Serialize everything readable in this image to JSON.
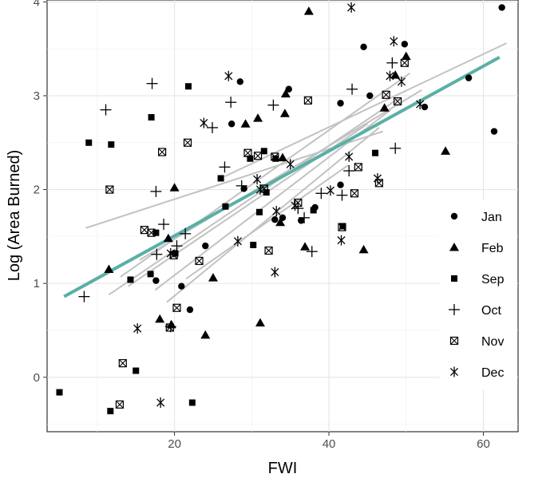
{
  "chart_data": {
    "type": "scatter",
    "title": "",
    "xlabel": "FWI",
    "ylabel": "Log (Area Burned)",
    "xlim": [
      3.5,
      64.5
    ],
    "ylim": [
      -0.58,
      4.02
    ],
    "x_ticks": [
      20,
      40,
      60
    ],
    "y_ticks": [
      0,
      1,
      2,
      3,
      4
    ],
    "grid": true,
    "legend_position": "right",
    "colors": {
      "fit": "#5aafa5",
      "month_fits": "#c2c2c2",
      "points": "#000000"
    },
    "series": [
      {
        "name": "Jan",
        "shape": "circle",
        "points": [
          [
            28.5,
            3.15
          ],
          [
            29,
            2.01
          ],
          [
            27.4,
            2.7
          ],
          [
            34.8,
            3.07
          ],
          [
            34,
            1.7
          ],
          [
            36.4,
            1.67
          ],
          [
            38.2,
            1.81
          ],
          [
            41.5,
            2.92
          ],
          [
            44.5,
            3.52
          ],
          [
            45.3,
            3.0
          ],
          [
            49.8,
            3.55
          ],
          [
            52.4,
            2.88
          ],
          [
            58.1,
            3.19
          ],
          [
            61.4,
            2.62
          ],
          [
            62.4,
            3.94
          ],
          [
            41.5,
            2.05
          ],
          [
            24,
            1.4
          ],
          [
            22,
            0.72
          ],
          [
            20.9,
            0.97
          ],
          [
            17.6,
            1.03
          ],
          [
            33,
            1.68
          ]
        ]
      },
      {
        "name": "Feb",
        "shape": "triangle",
        "points": [
          [
            37.4,
            3.9
          ],
          [
            34.4,
            3.02
          ],
          [
            34.3,
            2.81
          ],
          [
            34,
            2.34
          ],
          [
            29.2,
            2.7
          ],
          [
            30.8,
            2.76
          ],
          [
            20,
            2.02
          ],
          [
            19.2,
            1.48
          ],
          [
            11.5,
            1.15
          ],
          [
            18.1,
            0.62
          ],
          [
            19.6,
            0.56
          ],
          [
            24,
            0.45
          ],
          [
            25,
            1.06
          ],
          [
            31.1,
            0.58
          ],
          [
            33.7,
            1.65
          ],
          [
            36.9,
            1.39
          ],
          [
            44.5,
            1.36
          ],
          [
            47.2,
            2.87
          ],
          [
            48.6,
            3.22
          ],
          [
            50,
            3.42
          ],
          [
            55.1,
            2.41
          ]
        ]
      },
      {
        "name": "Sep",
        "shape": "square",
        "points": [
          [
            21.8,
            3.1
          ],
          [
            17,
            2.77
          ],
          [
            8.9,
            2.5
          ],
          [
            11.8,
            2.48
          ],
          [
            14.3,
            1.04
          ],
          [
            16.9,
            1.1
          ],
          [
            17.6,
            1.54
          ],
          [
            15,
            0.07
          ],
          [
            11.7,
            -0.36
          ],
          [
            22.3,
            -0.27
          ],
          [
            5.1,
            -0.16
          ],
          [
            26,
            2.12
          ],
          [
            26.6,
            1.82
          ],
          [
            29.8,
            2.33
          ],
          [
            30.2,
            1.41
          ],
          [
            31,
            1.76
          ],
          [
            31.6,
            2.41
          ],
          [
            31.9,
            1.97
          ],
          [
            33.1,
            2.33
          ],
          [
            38,
            1.78
          ],
          [
            41.8,
            1.61
          ],
          [
            46,
            2.39
          ],
          [
            20.1,
            1.32
          ]
        ]
      },
      {
        "name": "Oct",
        "shape": "plus",
        "points": [
          [
            17.1,
            3.13
          ],
          [
            11.1,
            2.85
          ],
          [
            17.6,
            1.98
          ],
          [
            8.3,
            0.86
          ],
          [
            18.6,
            1.63
          ],
          [
            17.7,
            1.31
          ],
          [
            21.4,
            1.53
          ],
          [
            20.3,
            1.4
          ],
          [
            19.5,
            0.54
          ],
          [
            24.9,
            2.66
          ],
          [
            27.3,
            2.93
          ],
          [
            26.5,
            2.24
          ],
          [
            28.7,
            2.04
          ],
          [
            32.8,
            2.9
          ],
          [
            36,
            1.8
          ],
          [
            36.8,
            1.7
          ],
          [
            37.8,
            1.34
          ],
          [
            39,
            1.96
          ],
          [
            41.7,
            1.94
          ],
          [
            42.6,
            2.2
          ],
          [
            43,
            3.07
          ],
          [
            48.2,
            3.35
          ],
          [
            48.6,
            2.44
          ]
        ]
      },
      {
        "name": "Nov",
        "shape": "boxx",
        "points": [
          [
            11.6,
            2.0
          ],
          [
            18.4,
            2.4
          ],
          [
            21.7,
            2.5
          ],
          [
            16.1,
            1.57
          ],
          [
            17,
            1.54
          ],
          [
            19.9,
            1.3
          ],
          [
            23.2,
            1.24
          ],
          [
            20.3,
            0.74
          ],
          [
            19.4,
            0.53
          ],
          [
            13.3,
            0.15
          ],
          [
            12.9,
            -0.29
          ],
          [
            29.5,
            2.39
          ],
          [
            30.8,
            2.36
          ],
          [
            33,
            2.35
          ],
          [
            31.6,
            2.01
          ],
          [
            32.2,
            1.35
          ],
          [
            36,
            1.86
          ],
          [
            37.3,
            2.95
          ],
          [
            41.7,
            1.6
          ],
          [
            43.3,
            1.96
          ],
          [
            43.8,
            2.24
          ],
          [
            46.5,
            2.07
          ],
          [
            47.4,
            3.01
          ],
          [
            48.9,
            2.94
          ],
          [
            49.8,
            3.35
          ]
        ]
      },
      {
        "name": "Dec",
        "shape": "asterisk",
        "points": [
          [
            27,
            3.21
          ],
          [
            23.8,
            2.71
          ],
          [
            28.2,
            1.45
          ],
          [
            30.7,
            2.11
          ],
          [
            31.1,
            2.0
          ],
          [
            33.2,
            1.77
          ],
          [
            33,
            1.12
          ],
          [
            35,
            2.27
          ],
          [
            35.6,
            1.83
          ],
          [
            40.2,
            1.99
          ],
          [
            41.6,
            1.46
          ],
          [
            42.6,
            2.35
          ],
          [
            42.9,
            3.94
          ],
          [
            46.3,
            2.12
          ],
          [
            47.9,
            3.21
          ],
          [
            48.4,
            3.58
          ],
          [
            49.4,
            3.15
          ],
          [
            51.8,
            2.91
          ],
          [
            18.2,
            -0.27
          ],
          [
            15.2,
            0.52
          ],
          [
            19.5,
            1.32
          ]
        ]
      }
    ],
    "overall_fit": {
      "x1": 5.7,
      "y1": 0.86,
      "x2": 62.1,
      "y2": 3.41
    },
    "month_fits": [
      {
        "x1": 8.5,
        "y1": 1.59,
        "x2": 47.0,
        "y2": 2.62
      },
      {
        "x1": 11.5,
        "y1": 0.88,
        "x2": 49.0,
        "y2": 2.97
      },
      {
        "x1": 13.0,
        "y1": 1.07,
        "x2": 50.5,
        "y2": 3.24
      },
      {
        "x1": 14.0,
        "y1": 0.97,
        "x2": 45.0,
        "y2": 2.7
      },
      {
        "x1": 15.5,
        "y1": 1.25,
        "x2": 52.0,
        "y2": 3.06
      },
      {
        "x1": 17.5,
        "y1": 0.93,
        "x2": 48.0,
        "y2": 2.85
      },
      {
        "x1": 19.0,
        "y1": 0.8,
        "x2": 46.5,
        "y2": 2.66
      },
      {
        "x1": 21.5,
        "y1": 1.05,
        "x2": 42.5,
        "y2": 2.26
      },
      {
        "x1": 26.5,
        "y1": 2.14,
        "x2": 63.0,
        "y2": 3.56
      }
    ]
  }
}
